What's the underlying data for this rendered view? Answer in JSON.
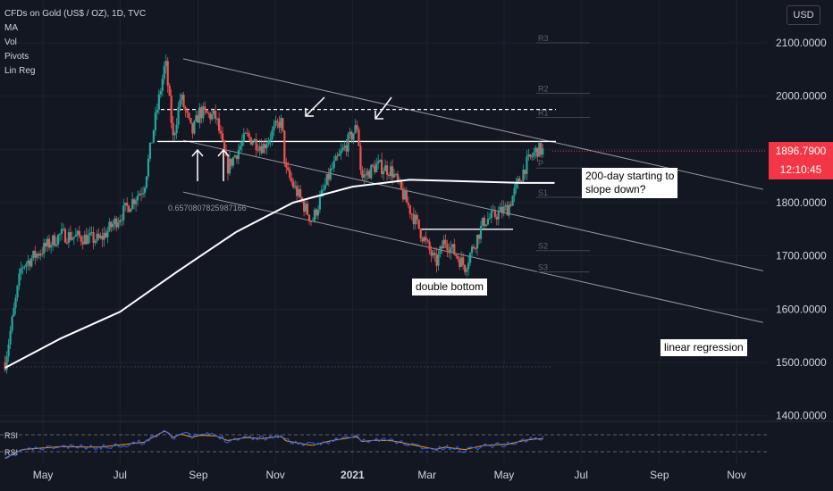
{
  "header": {
    "symbol_line": "CFDs on Gold (US$ / OZ), 1D, TVC",
    "indicators": [
      "MA",
      "Vol",
      "Pivots",
      "Lin Reg"
    ]
  },
  "toolbar": {
    "currency_label": "USD"
  },
  "last_price": {
    "value": "1896.7900",
    "countdown": "12:10:45"
  },
  "annotations": {
    "ma_note_line1": "200-day starting to",
    "ma_note_line2": "slope down?",
    "double_bottom": "double bottom",
    "linear_regression": "linear regression",
    "pearson": "0.6570807825987166"
  },
  "pivots": [
    "R3",
    "R2",
    "R1",
    "P",
    "S1",
    "S2",
    "S3"
  ],
  "rsi": {
    "labels": [
      "RSI",
      "RSI"
    ]
  },
  "colors": {
    "up": "#26a69a",
    "down": "#ef5350",
    "background": "#131722",
    "last_price": "#f23645",
    "rsi": "#2962ff"
  },
  "chart_data": {
    "type": "candlestick",
    "y_axis_ticks": [
      "2100.0000",
      "2000.0000",
      "1900.0000",
      "1800.0000",
      "1700.0000",
      "1600.0000",
      "1500.0000",
      "1400.0000"
    ],
    "ylim": [
      1400,
      2150
    ],
    "x_axis_ticks": [
      "May",
      "Jul",
      "Sep",
      "Nov",
      "2021",
      "Mar",
      "May",
      "Jul",
      "Sep",
      "Nov"
    ],
    "resistance_levels": [
      1975,
      1915
    ],
    "double_bottom_neck": 1750,
    "series": [
      {
        "name": "Price",
        "points": [
          [
            "2020-04-01",
            1500
          ],
          [
            "2020-04-14",
            1680
          ],
          [
            "2020-05-15",
            1740
          ],
          [
            "2020-06-15",
            1730
          ],
          [
            "2020-07-01",
            1775
          ],
          [
            "2020-07-20",
            1830
          ],
          [
            "2020-07-27",
            1930
          ],
          [
            "2020-08-06",
            2065
          ],
          [
            "2020-08-12",
            1920
          ],
          [
            "2020-08-18",
            2000
          ],
          [
            "2020-08-27",
            1930
          ],
          [
            "2020-09-02",
            1970
          ],
          [
            "2020-09-15",
            1960
          ],
          [
            "2020-09-24",
            1865
          ],
          [
            "2020-10-09",
            1925
          ],
          [
            "2020-10-22",
            1905
          ],
          [
            "2020-11-04",
            1950
          ],
          [
            "2020-11-06",
            1950
          ],
          [
            "2020-11-09",
            1860
          ],
          [
            "2020-11-30",
            1765
          ],
          [
            "2020-12-15",
            1860
          ],
          [
            "2021-01-05",
            1945
          ],
          [
            "2021-01-08",
            1845
          ],
          [
            "2021-01-20",
            1870
          ],
          [
            "2021-02-01",
            1860
          ],
          [
            "2021-02-15",
            1790
          ],
          [
            "2021-03-08",
            1685
          ],
          [
            "2021-03-15",
            1730
          ],
          [
            "2021-03-31",
            1680
          ],
          [
            "2021-04-15",
            1765
          ],
          [
            "2021-05-04",
            1790
          ],
          [
            "2021-05-18",
            1870
          ],
          [
            "2021-05-27",
            1900
          ],
          [
            "2021-06-01",
            1897
          ]
        ]
      },
      {
        "name": "MA",
        "points": [
          [
            "2020-04-01",
            1490
          ],
          [
            "2020-05-15",
            1545
          ],
          [
            "2020-07-01",
            1595
          ],
          [
            "2020-08-15",
            1670
          ],
          [
            "2020-10-01",
            1745
          ],
          [
            "2020-11-15",
            1800
          ],
          [
            "2021-01-01",
            1830
          ],
          [
            "2021-02-15",
            1843
          ],
          [
            "2021-04-01",
            1840
          ],
          [
            "2021-05-15",
            1837
          ],
          [
            "2021-06-10",
            1837
          ]
        ]
      }
    ],
    "rsi_levels": [
      70,
      30
    ]
  }
}
